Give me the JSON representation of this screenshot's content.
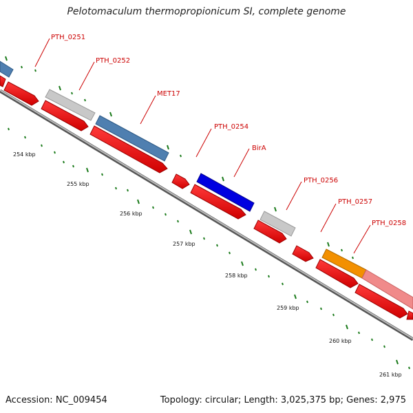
{
  "title": "Pelotomaculum thermopropionicum SI, complete genome",
  "footer": {
    "accession": "Accession: NC_009454",
    "summary": "Topology: circular; Length: 3,025,375 bp; Genes: 2,975"
  },
  "ruler": {
    "ticks": [
      "254 kbp",
      "255 kbp",
      "256 kbp",
      "257 kbp",
      "258 kbp",
      "259 kbp",
      "260 kbp",
      "261 kbp"
    ]
  },
  "genes": {
    "labels": [
      "PTH_0251",
      "PTH_0252",
      "MET17",
      "PTH_0254",
      "BirA",
      "PTH_0256",
      "PTH_0257",
      "PTH_0258"
    ]
  },
  "colors": {
    "label": "#cc0000",
    "cds": "#ff0000",
    "tick": "#1a7a1a",
    "backbone": "#777777",
    "gray_feature": "#c8c8c8",
    "steelblue_feature": "#4f7fb0",
    "blue_feature": "#0000e0",
    "orange_feature": "#f39000",
    "pink_feature": "#f08a8a"
  }
}
